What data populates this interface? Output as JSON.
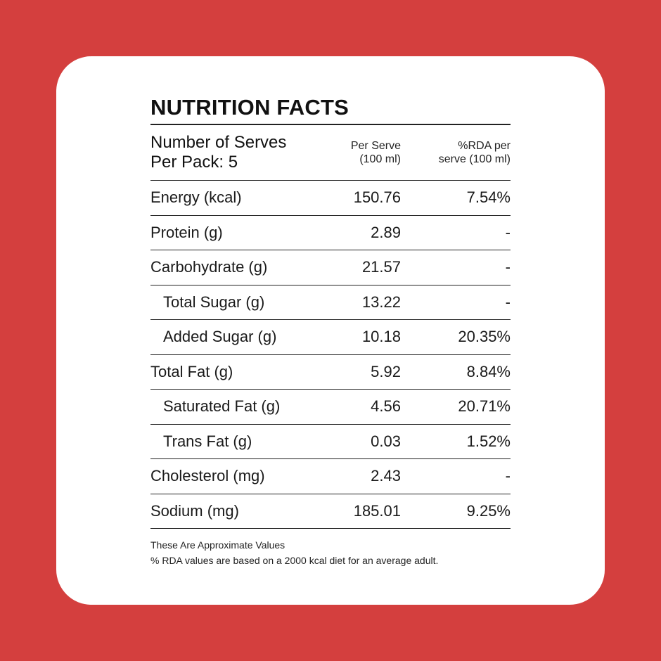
{
  "background_color": "#d43f3e",
  "card_color": "#ffffff",
  "title": "NUTRITION FACTS",
  "serves": {
    "line1": "Number of Serves",
    "line2": "Per Pack: 5"
  },
  "columns": {
    "per_serve_line1": "Per Serve",
    "per_serve_line2": "(100 ml)",
    "rda_line1": "%RDA per",
    "rda_line2": "serve (100 ml)"
  },
  "rows": [
    {
      "name": "Energy (kcal)",
      "value": "150.76",
      "rda": "7.54%"
    },
    {
      "name": "Protein (g)",
      "value": "2.89",
      "rda": "-"
    },
    {
      "name": "Carbohydrate (g)",
      "value": "21.57",
      "rda": "-"
    },
    {
      "name": "Total Sugar (g)",
      "value": "13.22",
      "rda": "-"
    },
    {
      "name": "Added Sugar (g)",
      "value": "10.18",
      "rda": "20.35%"
    },
    {
      "name": "Total Fat (g)",
      "value": "5.92",
      "rda": "8.84%"
    },
    {
      "name": "Saturated Fat (g)",
      "value": "4.56",
      "rda": "20.71%"
    },
    {
      "name": "Trans Fat (g)",
      "value": "0.03",
      "rda": "1.52%"
    },
    {
      "name": "Cholesterol (mg)",
      "value": "2.43",
      "rda": "-"
    },
    {
      "name": "Sodium (mg)",
      "value": "185.01",
      "rda": "9.25%"
    }
  ],
  "notes": {
    "line1": "These Are Approximate Values",
    "line2": "% RDA values are based on a 2000 kcal diet for an average adult."
  }
}
